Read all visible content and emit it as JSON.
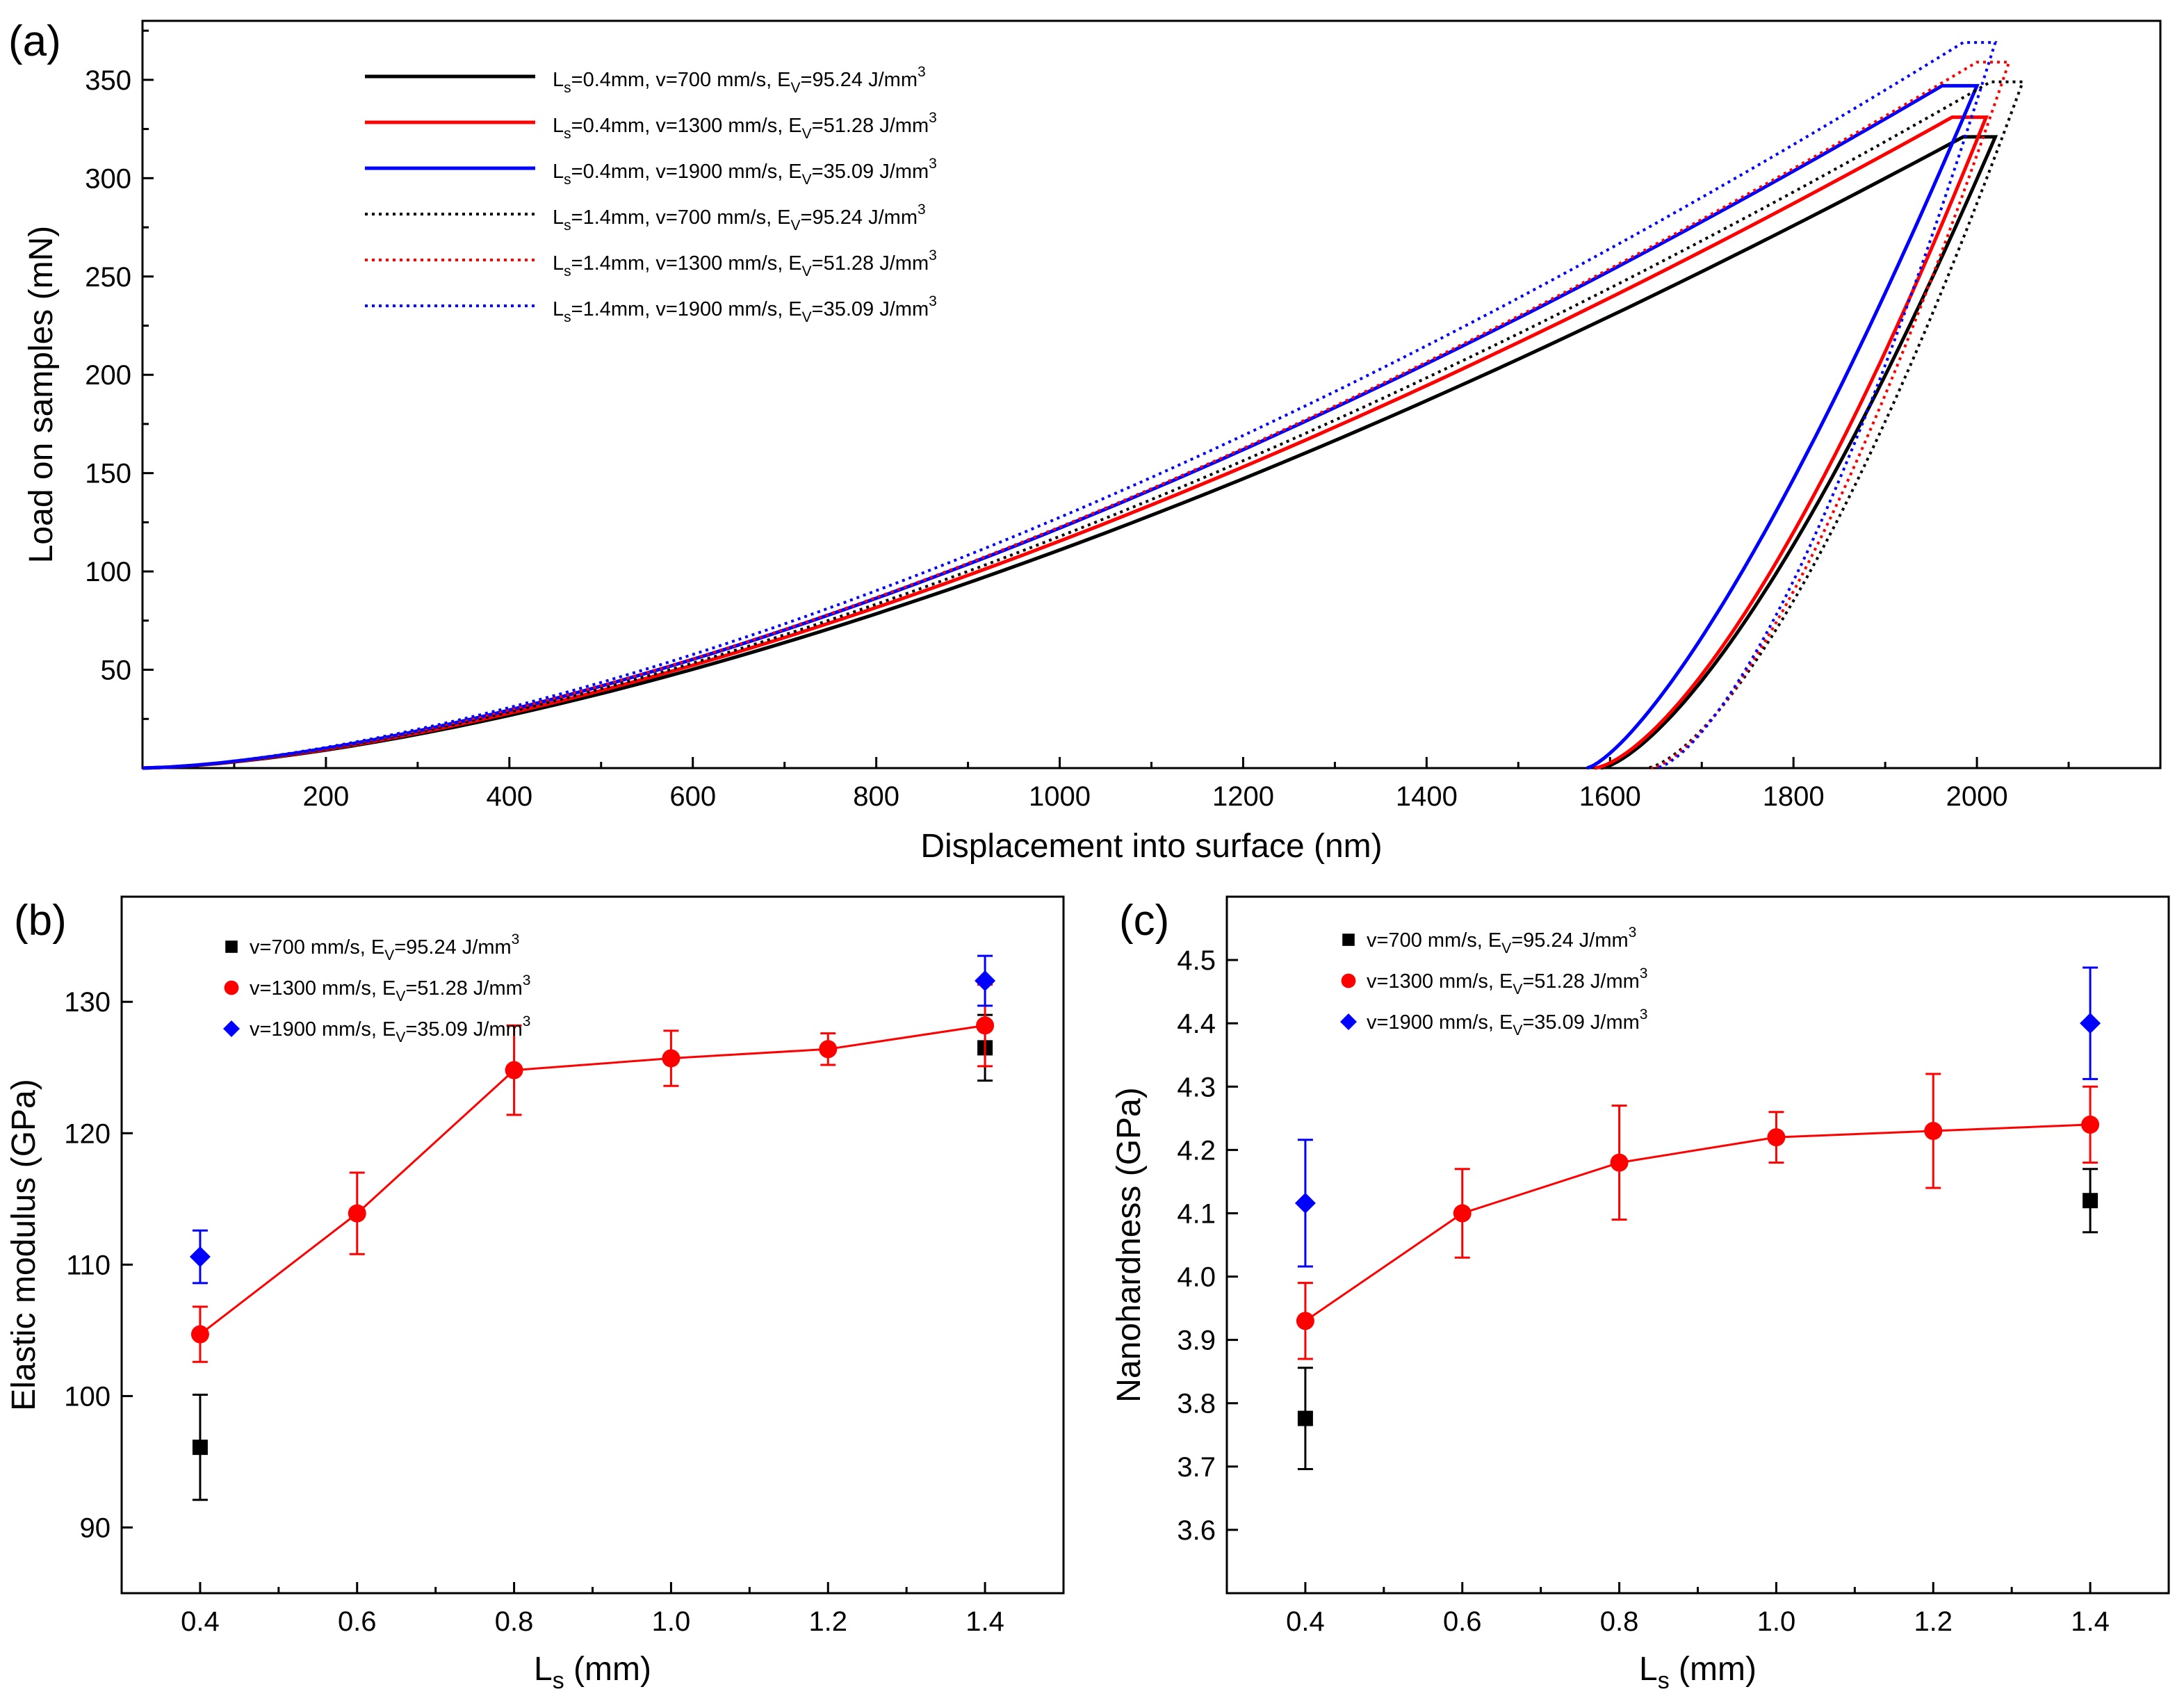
{
  "chart_data": [
    {
      "panel_label": "(a)",
      "type": "line",
      "title": "",
      "xlabel": "Displacement into surface (nm)",
      "ylabel": "Load on samples (mN)",
      "xlim": [
        0,
        2200
      ],
      "ylim": [
        0,
        380
      ],
      "xticks": [
        200,
        400,
        600,
        800,
        1000,
        1200,
        1400,
        1600,
        1800,
        2000
      ],
      "yticks": [
        50,
        100,
        150,
        200,
        250,
        300,
        350
      ],
      "legend_position": "top-center",
      "series": [
        {
          "name": "Ls=0.4mm, v=700 mm/s, EV=95.24 J/mm3",
          "legend": {
            "a": "L",
            "b": "s",
            "c": "=0.4mm, v=700 mm/s, E",
            "d": "V",
            "e": "=95.24 J/mm",
            "f": "3"
          },
          "color": "#000000",
          "dash": "solid",
          "load_exp": 1.55,
          "max_depth": 1985,
          "max_load": 321,
          "hold_end": 2020,
          "residual_depth": 1590,
          "unload_exp": 1.45
        },
        {
          "name": "Ls=0.4mm, v=1300 mm/s, EV=51.28 J/mm3",
          "legend": {
            "a": "L",
            "b": "s",
            "c": "=0.4mm, v=1300 mm/s, E",
            "d": "V",
            "e": "=51.28 J/mm",
            "f": "3"
          },
          "color": "#ff0000",
          "dash": "solid",
          "load_exp": 1.55,
          "max_depth": 1973,
          "max_load": 331,
          "hold_end": 2010,
          "residual_depth": 1583,
          "unload_exp": 1.5
        },
        {
          "name": "Ls=0.4mm, v=1900 mm/s, EV=35.09 J/mm3",
          "legend": {
            "a": "L",
            "b": "s",
            "c": "=0.4mm, v=1900 mm/s, E",
            "d": "V",
            "e": "=35.09 J/mm",
            "f": "3"
          },
          "color": "#0000ff",
          "dash": "solid",
          "load_exp": 1.55,
          "max_depth": 1962,
          "max_load": 347,
          "hold_end": 2000,
          "residual_depth": 1575,
          "unload_exp": 1.35
        },
        {
          "name": "Ls=1.4mm, v=700 mm/s, EV=95.24 J/mm3",
          "legend": {
            "a": "L",
            "b": "s",
            "c": "=1.4mm, v=700 mm/s, E",
            "d": "V",
            "e": "=95.24 J/mm",
            "f": "3"
          },
          "color": "#000000",
          "dash": "dotted",
          "load_exp": 1.55,
          "max_depth": 2015,
          "max_load": 349,
          "hold_end": 2050,
          "residual_depth": 1640,
          "unload_exp": 1.5
        },
        {
          "name": "Ls=1.4mm, v=1300 mm/s, EV=51.28 J/mm3",
          "legend": {
            "a": "L",
            "b": "s",
            "c": "=1.4mm, v=1300 mm/s, E",
            "d": "V",
            "e": "=51.28 J/mm",
            "f": "3"
          },
          "color": "#ff0000",
          "dash": "dotted",
          "load_exp": 1.55,
          "max_depth": 2000,
          "max_load": 359,
          "hold_end": 2035,
          "residual_depth": 1645,
          "unload_exp": 1.5
        },
        {
          "name": "Ls=1.4mm, v=1900 mm/s, EV=35.09 J/mm3",
          "legend": {
            "a": "L",
            "b": "s",
            "c": "=1.4mm, v=1900 mm/s, E",
            "d": "V",
            "e": "=35.09 J/mm",
            "f": "3"
          },
          "color": "#0000ff",
          "dash": "dotted",
          "load_exp": 1.55,
          "max_depth": 1985,
          "max_load": 369,
          "hold_end": 2020,
          "residual_depth": 1650,
          "unload_exp": 1.5
        }
      ]
    },
    {
      "panel_label": "(b)",
      "type": "scatter",
      "title": "",
      "xlabel_main": "L",
      "xlabel_sub": "s",
      "xlabel_unit": " (mm)",
      "ylabel": "Elastic modulus (GPa)",
      "xlim": [
        0.3,
        1.5
      ],
      "ylim": [
        85,
        138
      ],
      "xticks": [
        "0.4",
        "0.6",
        "0.8",
        "1.0",
        "1.2",
        "1.4"
      ],
      "yticks": [
        90,
        100,
        110,
        120,
        130
      ],
      "legend_position": "top-left",
      "series": [
        {
          "name": "v=700 mm/s, EV=95.24 J/mm3",
          "legend": {
            "a": "v=700 mm/s, E",
            "b": "V",
            "c": "=95.24 J/mm",
            "d": "3"
          },
          "color": "#000000",
          "marker": "square",
          "connected": false,
          "x": [
            0.4,
            1.4
          ],
          "y": [
            96.1,
            126.5
          ],
          "err": [
            4.0,
            2.5
          ]
        },
        {
          "name": "v=1300 mm/s, EV=51.28 J/mm3",
          "legend": {
            "a": "v=1300 mm/s, E",
            "b": "V",
            "c": "=51.28 J/mm",
            "d": "3"
          },
          "color": "#ff0000",
          "marker": "circle",
          "connected": true,
          "x": [
            0.4,
            0.6,
            0.8,
            1.0,
            1.2,
            1.4
          ],
          "y": [
            104.7,
            113.9,
            124.8,
            125.7,
            126.4,
            128.2
          ],
          "err": [
            2.1,
            3.1,
            3.4,
            2.1,
            1.2,
            3.1
          ]
        },
        {
          "name": "v=1900 mm/s, EV=35.09 J/mm3",
          "legend": {
            "a": "v=1900 mm/s, E",
            "b": "V",
            "c": "=35.09 J/mm",
            "d": "3"
          },
          "color": "#0000ff",
          "marker": "diamond",
          "connected": false,
          "x": [
            0.4,
            1.4
          ],
          "y": [
            110.6,
            131.6
          ],
          "err": [
            2.0,
            1.9
          ]
        }
      ]
    },
    {
      "panel_label": "(c)",
      "type": "scatter",
      "title": "",
      "xlabel_main": "L",
      "xlabel_sub": "s",
      "xlabel_unit": " (mm)",
      "ylabel": "Nanohardness (GPa)",
      "xlim": [
        0.3,
        1.5
      ],
      "ylim": [
        3.5,
        4.6
      ],
      "xticks": [
        "0.4",
        "0.6",
        "0.8",
        "1.0",
        "1.2",
        "1.4"
      ],
      "yticks": [
        "3.6",
        "3.7",
        "3.8",
        "3.9",
        "4.0",
        "4.1",
        "4.2",
        "4.3",
        "4.4",
        "4.5"
      ],
      "legend_position": "top-left",
      "series": [
        {
          "name": "v=700 mm/s, EV=95.24 J/mm3",
          "legend": {
            "a": "v=700 mm/s, E",
            "b": "V",
            "c": "=95.24 J/mm",
            "d": "3"
          },
          "color": "#000000",
          "marker": "square",
          "connected": false,
          "x": [
            0.4,
            1.4
          ],
          "y": [
            3.776,
            4.12
          ],
          "err": [
            0.08,
            0.05
          ]
        },
        {
          "name": "v=1300 mm/s, EV=51.28 J/mm3",
          "legend": {
            "a": "v=1300 mm/s, E",
            "b": "V",
            "c": "=51.28 J/mm",
            "d": "3"
          },
          "color": "#ff0000",
          "marker": "circle",
          "connected": true,
          "x": [
            0.4,
            0.6,
            0.8,
            1.0,
            1.2,
            1.4
          ],
          "y": [
            3.93,
            4.1,
            4.18,
            4.22,
            4.23,
            4.24
          ],
          "err": [
            0.06,
            0.07,
            0.09,
            0.04,
            0.09,
            0.06
          ]
        },
        {
          "name": "v=1900 mm/s, EV=35.09 J/mm3",
          "legend": {
            "a": "v=1900 mm/s, E",
            "b": "V",
            "c": "=35.09 J/mm",
            "d": "3"
          },
          "color": "#0000ff",
          "marker": "diamond",
          "connected": false,
          "x": [
            0.4,
            1.4
          ],
          "y": [
            4.116,
            4.4
          ],
          "err": [
            0.1,
            0.088
          ]
        }
      ]
    }
  ]
}
